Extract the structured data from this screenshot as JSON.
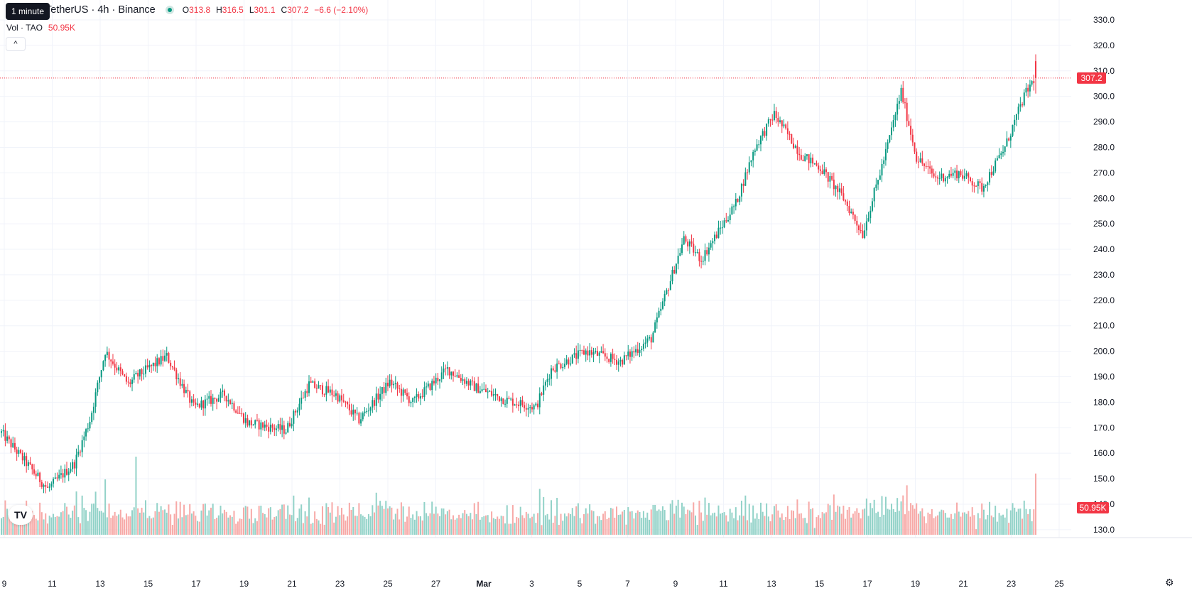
{
  "header": {
    "symbol_line": "TetherUS · 4h · Binance",
    "ohlc": [
      {
        "label": "O",
        "value": "313.8"
      },
      {
        "label": "H",
        "value": "316.5"
      },
      {
        "label": "L",
        "value": "301.1"
      },
      {
        "label": "C",
        "value": "307.2"
      }
    ],
    "change": "−6.6 (−2.10%)",
    "tooltip": "1 minute"
  },
  "volume_legend": {
    "label": "Vol · TAO",
    "value": "50.95K"
  },
  "colors": {
    "up": "#089981",
    "down": "#f23645",
    "vol_up": "#92d2c8",
    "vol_down": "#f7a9a7"
  },
  "icons": {
    "collapse": "chevron-up-icon",
    "logo": "tradingview-logo-icon",
    "settings": "gear-icon"
  },
  "chart_data": {
    "type": "candlestick",
    "price_axis": {
      "ylim": [
        124.0,
        334.0
      ],
      "ticks": [
        "330.0",
        "320.0",
        "310.0",
        "300.0",
        "290.0",
        "280.0",
        "270.0",
        "260.0",
        "250.0",
        "240.0",
        "230.0",
        "220.0",
        "210.0",
        "200.0",
        "190.0",
        "180.0",
        "170.0",
        "160.0",
        "150.0",
        "140.0",
        "130.0"
      ],
      "last_price": 307.2,
      "last_price_label": "307.2",
      "volume_label": "50.95K"
    },
    "time_axis": {
      "labels": [
        "9",
        "11",
        "13",
        "15",
        "17",
        "19",
        "21",
        "23",
        "25",
        "27",
        "Mar",
        "3",
        "5",
        "7",
        "9",
        "11",
        "13",
        "15",
        "17",
        "19",
        "21",
        "23",
        "25"
      ]
    },
    "series": {
      "anchors": [
        [
          0,
          168
        ],
        [
          12,
          157
        ],
        [
          24,
          146
        ],
        [
          38,
          156
        ],
        [
          46,
          173
        ],
        [
          54,
          200
        ],
        [
          66,
          187
        ],
        [
          70,
          190
        ],
        [
          86,
          198
        ],
        [
          100,
          178
        ],
        [
          116,
          183
        ],
        [
          128,
          172
        ],
        [
          148,
          169
        ],
        [
          160,
          187
        ],
        [
          174,
          183
        ],
        [
          186,
          173
        ],
        [
          202,
          188
        ],
        [
          214,
          180
        ],
        [
          232,
          193
        ],
        [
          246,
          186
        ],
        [
          262,
          181
        ],
        [
          278,
          178
        ],
        [
          286,
          193
        ],
        [
          304,
          200
        ],
        [
          322,
          196
        ],
        [
          338,
          205
        ],
        [
          355,
          244
        ],
        [
          364,
          236
        ],
        [
          382,
          258
        ],
        [
          392,
          280
        ],
        [
          402,
          293
        ],
        [
          416,
          277
        ],
        [
          426,
          272
        ],
        [
          438,
          260
        ],
        [
          448,
          246
        ],
        [
          460,
          278
        ],
        [
          468,
          302
        ],
        [
          476,
          276
        ],
        [
          486,
          268
        ],
        [
          498,
          270
        ],
        [
          510,
          264
        ],
        [
          522,
          280
        ],
        [
          532,
          300
        ],
        [
          538,
          308
        ]
      ]
    }
  }
}
